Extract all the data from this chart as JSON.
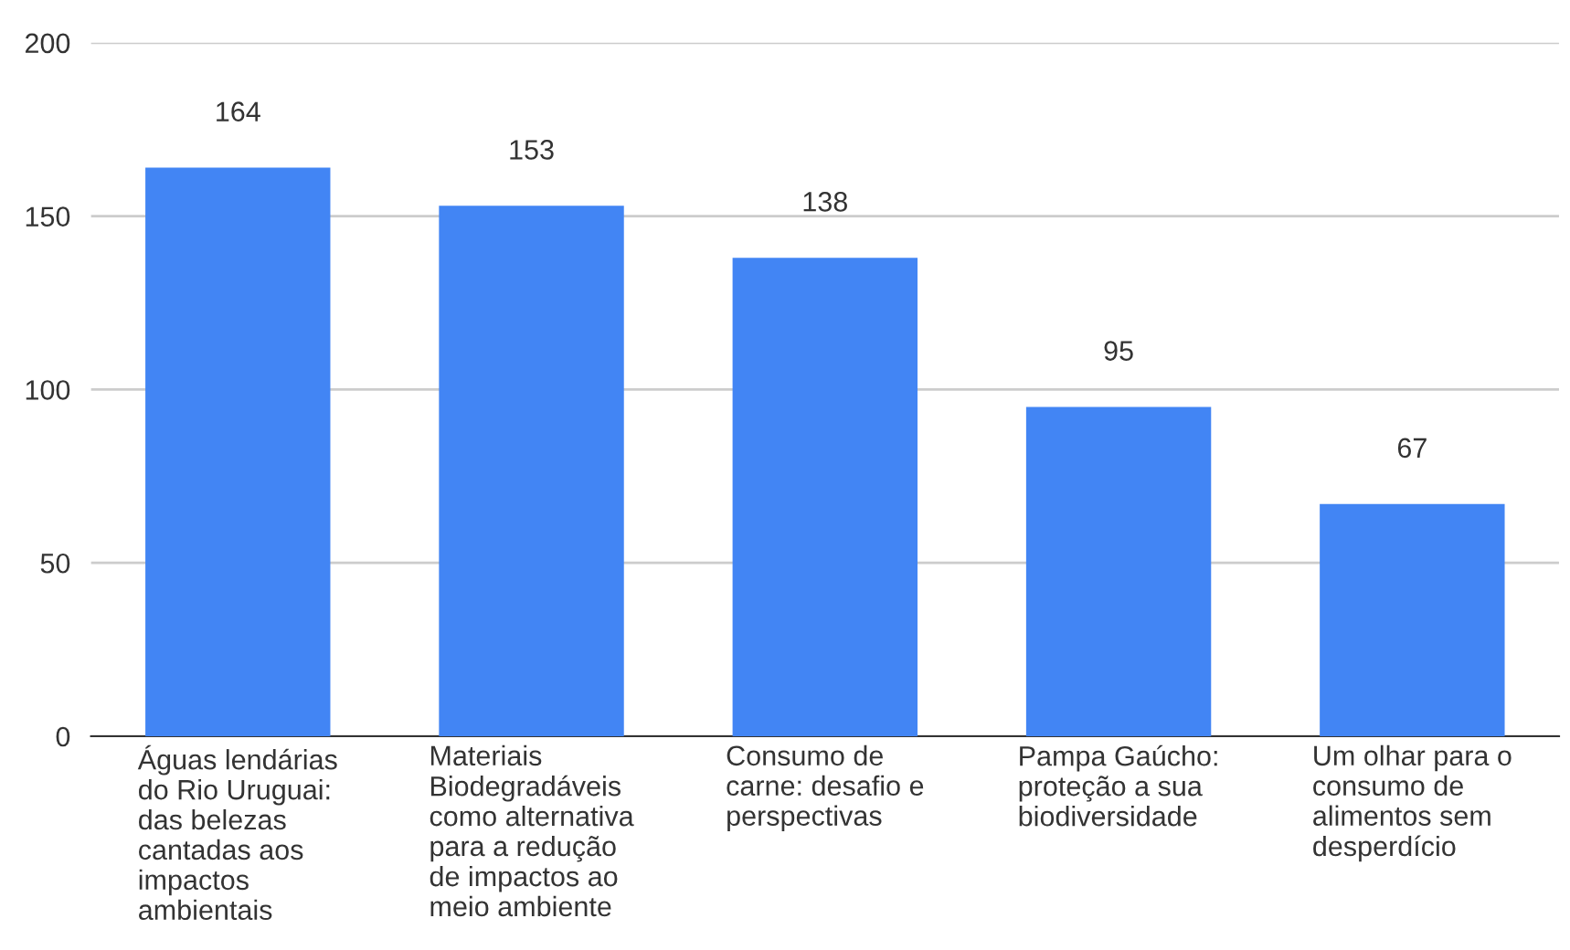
{
  "chart_data": {
    "type": "bar",
    "categories": [
      "Águas lendárias\ndo Rio Uruguai:\ndas belezas\ncantadas aos\nimpactos\nambientais",
      "Materiais\nBiodegradáveis\ncomo alternativa\npara a redução\nde impactos ao\nmeio ambiente",
      "Consumo de\ncarne: desafio e\nperspectivas",
      "Pampa Gaúcho:\nproteção a sua\nbiodiversidade",
      "Um olhar para o\nconsumo de\nalimentos sem\ndesperdício"
    ],
    "values": [
      164,
      153,
      138,
      95,
      67
    ],
    "color": "#4285f4",
    "ylim": [
      0,
      200
    ],
    "yticks": [
      0,
      50,
      100,
      150,
      200
    ],
    "grid": "y",
    "data_labels": true
  }
}
